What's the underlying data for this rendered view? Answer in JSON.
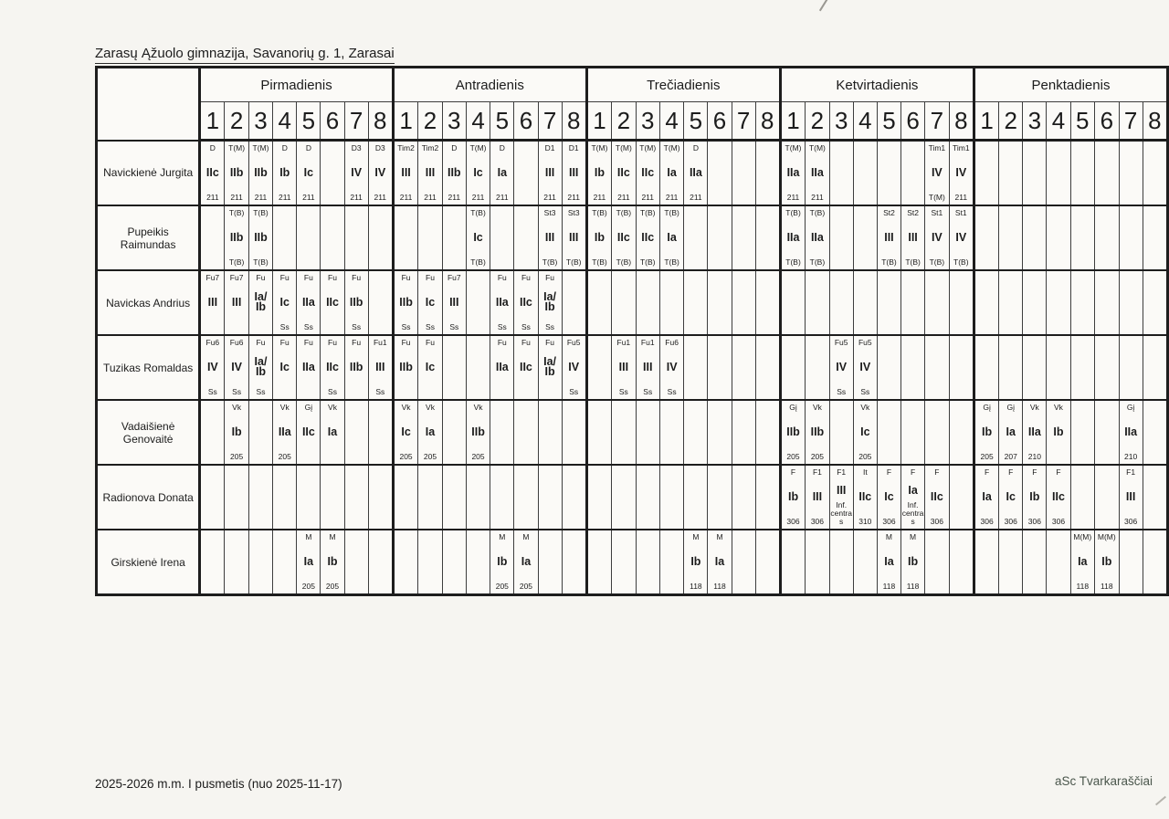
{
  "page": {
    "title": "Zarasų Ąžuolo gimnazija, Savanorių g. 1, Zarasai",
    "footer_left": "2025-2026 m.m. I pusmetis (nuo 2025-11-17)",
    "footer_right": "aSc Tvarkaraščiai"
  },
  "colors": {
    "paper": "#f6f5f1",
    "grid_thick": "#1d1d1d",
    "grid_thin": "#3d3d3d",
    "footer_brand": "#4a564c"
  },
  "days": [
    "Pirmadienis",
    "Antradienis",
    "Trečiadienis",
    "Ketvirtadienis",
    "Penktadienis"
  ],
  "periods": [
    "1",
    "2",
    "3",
    "4",
    "5",
    "6",
    "7",
    "8"
  ],
  "teachers": [
    {
      "name": "Navickienė Jurgita",
      "days": [
        [
          [
            "D",
            "IIc",
            "211"
          ],
          [
            "T(M)",
            "IIb",
            "211"
          ],
          [
            "T(M)",
            "IIb",
            "211"
          ],
          [
            "D",
            "Ib",
            "211"
          ],
          [
            "D",
            "Ic",
            "211"
          ],
          null,
          [
            "D3",
            "IV",
            "211"
          ],
          [
            "D3",
            "IV",
            "211"
          ]
        ],
        [
          [
            "Tim2",
            "III",
            "211"
          ],
          [
            "Tim2",
            "III",
            "211"
          ],
          [
            "D",
            "IIb",
            "211"
          ],
          [
            "T(M)",
            "Ic",
            "211"
          ],
          [
            "D",
            "Ia",
            "211"
          ],
          null,
          [
            "D1",
            "III",
            "211"
          ],
          [
            "D1",
            "III",
            "211"
          ]
        ],
        [
          [
            "T(M)",
            "Ib",
            "211"
          ],
          [
            "T(M)",
            "IIc",
            "211"
          ],
          [
            "T(M)",
            "IIc",
            "211"
          ],
          [
            "T(M)",
            "Ia",
            "211"
          ],
          [
            "D",
            "IIa",
            "211"
          ],
          null,
          null,
          null
        ],
        [
          [
            "T(M)",
            "IIa",
            "211"
          ],
          [
            "T(M)",
            "IIa",
            "211"
          ],
          null,
          null,
          null,
          null,
          [
            "Tim1",
            "IV",
            "T(M)"
          ],
          [
            "Tim1",
            "IV",
            "211"
          ]
        ],
        [
          null,
          null,
          null,
          null,
          null,
          null,
          null,
          null
        ]
      ]
    },
    {
      "name": "Pupeikis Raimundas",
      "days": [
        [
          null,
          [
            "T(B)",
            "IIb",
            "T(B)"
          ],
          [
            "T(B)",
            "IIb",
            "T(B)"
          ],
          null,
          null,
          null,
          null,
          null
        ],
        [
          null,
          null,
          null,
          [
            "T(B)",
            "Ic",
            "T(B)"
          ],
          null,
          null,
          [
            "St3",
            "III",
            "T(B)"
          ],
          [
            "St3",
            "III",
            "T(B)"
          ]
        ],
        [
          [
            "T(B)",
            "Ib",
            "T(B)"
          ],
          [
            "T(B)",
            "IIc",
            "T(B)"
          ],
          [
            "T(B)",
            "IIc",
            "T(B)"
          ],
          [
            "T(B)",
            "Ia",
            "T(B)"
          ],
          null,
          null,
          null,
          null
        ],
        [
          [
            "T(B)",
            "IIa",
            "T(B)"
          ],
          [
            "T(B)",
            "IIa",
            "T(B)"
          ],
          null,
          null,
          [
            "St2",
            "III",
            "T(B)"
          ],
          [
            "St2",
            "III",
            "T(B)"
          ],
          [
            "St1",
            "IV",
            "T(B)"
          ],
          [
            "St1",
            "IV",
            "T(B)"
          ]
        ],
        [
          null,
          null,
          null,
          null,
          null,
          null,
          null,
          null
        ]
      ]
    },
    {
      "name": "Navickas Andrius",
      "days": [
        [
          [
            "Fu7",
            "III",
            ""
          ],
          [
            "Fu7",
            "III",
            ""
          ],
          [
            "Fu",
            "Ia/ Ib",
            ""
          ],
          [
            "Fu",
            "Ic",
            "Ss"
          ],
          [
            "Fu",
            "IIa",
            "Ss"
          ],
          [
            "Fu",
            "IIc",
            ""
          ],
          [
            "Fu",
            "IIb",
            "Ss"
          ],
          null
        ],
        [
          [
            "Fu",
            "IIb",
            "Ss"
          ],
          [
            "Fu",
            "Ic",
            "Ss"
          ],
          [
            "Fu7",
            "III",
            "Ss"
          ],
          null,
          [
            "Fu",
            "IIa",
            "Ss"
          ],
          [
            "Fu",
            "IIc",
            "Ss"
          ],
          [
            "Fu",
            "Ia/ Ib",
            "Ss"
          ],
          null
        ],
        [
          null,
          null,
          null,
          null,
          null,
          null,
          null,
          null
        ],
        [
          null,
          null,
          null,
          null,
          null,
          null,
          null,
          null
        ],
        [
          null,
          null,
          null,
          null,
          null,
          null,
          null,
          null
        ]
      ]
    },
    {
      "name": "Tuzikas Romaldas",
      "days": [
        [
          [
            "Fu6",
            "IV",
            "Ss"
          ],
          [
            "Fu6",
            "IV",
            "Ss"
          ],
          [
            "Fu",
            "Ia/ Ib",
            "Ss"
          ],
          [
            "Fu",
            "Ic",
            ""
          ],
          [
            "Fu",
            "IIa",
            ""
          ],
          [
            "Fu",
            "IIc",
            "Ss"
          ],
          [
            "Fu",
            "IIb",
            ""
          ],
          [
            "Fu1",
            "III",
            "Ss"
          ]
        ],
        [
          [
            "Fu",
            "IIb",
            ""
          ],
          [
            "Fu",
            "Ic",
            ""
          ],
          null,
          null,
          [
            "Fu",
            "IIa",
            ""
          ],
          [
            "Fu",
            "IIc",
            ""
          ],
          [
            "Fu",
            "Ia/ Ib",
            ""
          ],
          [
            "Fu5",
            "IV",
            "Ss"
          ]
        ],
        [
          null,
          [
            "Fu1",
            "III",
            "Ss"
          ],
          [
            "Fu1",
            "III",
            "Ss"
          ],
          [
            "Fu6",
            "IV",
            "Ss"
          ],
          null,
          null,
          null,
          null
        ],
        [
          null,
          null,
          [
            "Fu5",
            "IV",
            "Ss"
          ],
          [
            "Fu5",
            "IV",
            "Ss"
          ],
          null,
          null,
          null,
          null
        ],
        [
          null,
          null,
          null,
          null,
          null,
          null,
          null,
          null
        ]
      ]
    },
    {
      "name": "Vadaišienė Genovaitė",
      "days": [
        [
          null,
          [
            "Vk",
            "Ib",
            "205"
          ],
          null,
          [
            "Vk",
            "IIa",
            "205"
          ],
          [
            "Gį",
            "IIc",
            ""
          ],
          [
            "Vk",
            "Ia",
            ""
          ],
          null,
          null
        ],
        [
          [
            "Vk",
            "Ic",
            "205"
          ],
          [
            "Vk",
            "Ia",
            "205"
          ],
          null,
          [
            "Vk",
            "IIb",
            "205"
          ],
          null,
          null,
          null,
          null
        ],
        [
          null,
          null,
          null,
          null,
          null,
          null,
          null,
          null
        ],
        [
          [
            "Gį",
            "IIb",
            "205"
          ],
          [
            "Vk",
            "IIb",
            "205"
          ],
          null,
          [
            "Vk",
            "Ic",
            "205"
          ],
          null,
          null,
          null,
          null
        ],
        [
          [
            "Gį",
            "Ib",
            "205"
          ],
          [
            "Gį",
            "Ia",
            "207"
          ],
          [
            "Vk",
            "IIa",
            "210"
          ],
          [
            "Vk",
            "Ib",
            ""
          ],
          null,
          null,
          [
            "Gį",
            "IIa",
            "210"
          ],
          null
        ]
      ]
    },
    {
      "name": "Radionova Donata",
      "days": [
        [
          null,
          null,
          null,
          null,
          null,
          null,
          null,
          null
        ],
        [
          null,
          null,
          null,
          null,
          null,
          null,
          null,
          null
        ],
        [
          null,
          null,
          null,
          null,
          null,
          null,
          null,
          null
        ],
        [
          [
            "F",
            "Ib",
            "306"
          ],
          [
            "F1",
            "III",
            "306"
          ],
          [
            "F1",
            "III",
            "Inf. centras"
          ],
          [
            "It",
            "IIc",
            "310"
          ],
          [
            "F",
            "Ic",
            "306"
          ],
          [
            "F",
            "Ia",
            "Inf. centras"
          ],
          [
            "F",
            "IIc",
            "306"
          ],
          null
        ],
        [
          [
            "F",
            "Ia",
            "306"
          ],
          [
            "F",
            "Ic",
            "306"
          ],
          [
            "F",
            "Ib",
            "306"
          ],
          [
            "F",
            "IIc",
            "306"
          ],
          null,
          null,
          [
            "F1",
            "III",
            "306"
          ],
          null
        ]
      ]
    },
    {
      "name": "Girskienė Irena",
      "days": [
        [
          null,
          null,
          null,
          null,
          [
            "M",
            "Ia",
            "205"
          ],
          [
            "M",
            "Ib",
            "205"
          ],
          null,
          null
        ],
        [
          null,
          null,
          null,
          null,
          [
            "M",
            "Ib",
            "205"
          ],
          [
            "M",
            "Ia",
            "205"
          ],
          null,
          null
        ],
        [
          null,
          null,
          null,
          null,
          [
            "M",
            "Ib",
            "118"
          ],
          [
            "M",
            "Ia",
            "118"
          ],
          null,
          null
        ],
        [
          null,
          null,
          null,
          null,
          [
            "M",
            "Ia",
            "118"
          ],
          [
            "M",
            "Ib",
            "118"
          ],
          null,
          null
        ],
        [
          null,
          null,
          null,
          null,
          [
            "M(M)",
            "Ia",
            "118"
          ],
          [
            "M(M)",
            "Ib",
            "118"
          ],
          null,
          null
        ]
      ]
    }
  ]
}
